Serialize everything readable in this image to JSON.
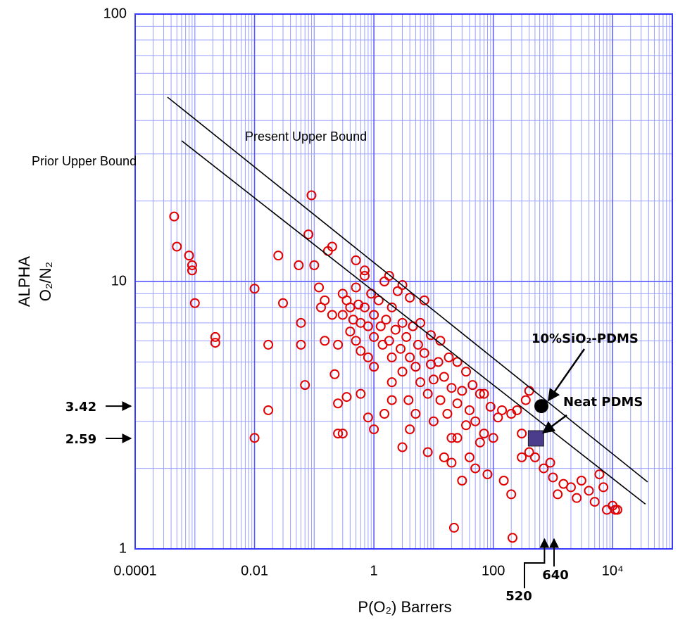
{
  "chart_data": {
    "type": "scatter",
    "x_label": "P(O₂) Barrers",
    "y_label": [
      "ALPHA",
      "O₂/N₂"
    ],
    "x_scale": "log",
    "y_scale": "log",
    "grid": true,
    "xlim": [
      0.0001,
      100000
    ],
    "ylim": [
      1,
      100
    ],
    "xticks": [
      0.0001,
      0.01,
      1,
      100,
      {
        "value": 10000,
        "label": "10⁴"
      }
    ],
    "yticks": [
      1,
      10,
      100
    ],
    "color": "#e00000",
    "x": [
      0.00045,
      0.0005,
      0.0008,
      0.0009,
      0.0009,
      0.001,
      0.0022,
      0.0022,
      0.01,
      0.01,
      0.017,
      0.017,
      0.025,
      0.03,
      0.055,
      0.06,
      0.06,
      0.07,
      0.08,
      0.09,
      0.1,
      0.12,
      0.13,
      0.15,
      0.17,
      0.2,
      0.22,
      0.25,
      0.3,
      0.3,
      0.35,
      0.4,
      0.4,
      0.45,
      0.5,
      0.5,
      0.55,
      0.6,
      0.6,
      0.7,
      0.7,
      0.8,
      0.8,
      0.9,
      1,
      1,
      1,
      1.2,
      1.3,
      1.4,
      1.5,
      1.6,
      1.8,
      2,
      2,
      2,
      2.3,
      2.5,
      2.8,
      3,
      3,
      3.5,
      3.8,
      4,
      4.5,
      5,
      5,
      5.5,
      6,
      7,
      7,
      8,
      9,
      10,
      10,
      12,
      13,
      15,
      17,
      20,
      20,
      25,
      30,
      35,
      40,
      50,
      60,
      70,
      100,
      120,
      0.6,
      1.5,
      0.25,
      0.2,
      8,
      20,
      4,
      2,
      0.8,
      1,
      3,
      15,
      30,
      50,
      80,
      150,
      200,
      22,
      210,
      300,
      350,
      400,
      500,
      700,
      900,
      1000,
      1200,
      1500,
      2000,
      2500,
      3000,
      4000,
      5000,
      6000,
      7000,
      8000,
      10000,
      11000,
      12000,
      0.25,
      0.3,
      0.35,
      25,
      40,
      400,
      250,
      140,
      60,
      0.15,
      0.5,
      0.7,
      1.8,
      3,
      4,
      6,
      9,
      13,
      18,
      25,
      35,
      45,
      70,
      90,
      200,
      300
    ],
    "values": [
      17.5,
      13.5,
      12.5,
      11.5,
      11,
      8.3,
      6.2,
      5.9,
      9.4,
      2.6,
      5.8,
      3.3,
      12.5,
      8.3,
      11.5,
      7.0,
      5.8,
      4.1,
      15,
      21,
      11.5,
      9.5,
      8,
      6,
      13,
      13.5,
      4.5,
      3.5,
      9.0,
      7.5,
      8.5,
      8,
      6.5,
      7.2,
      9.5,
      6,
      8.2,
      7,
      5.5,
      10.5,
      8,
      6.8,
      5.2,
      9,
      7.5,
      6.2,
      4.8,
      8.5,
      6.8,
      5.8,
      10,
      7.2,
      6,
      8,
      5.2,
      4.2,
      6.6,
      9.2,
      5.6,
      7,
      4.6,
      6.2,
      3.6,
      5.2,
      6.8,
      4.8,
      3.2,
      5.8,
      4.2,
      5.4,
      8.5,
      3.8,
      4.9,
      4.3,
      3,
      5,
      3.6,
      4.4,
      3.2,
      4.0,
      2.6,
      3.5,
      3.9,
      2.9,
      3.3,
      3.0,
      2.5,
      2.7,
      2.6,
      3.1,
      3.8,
      3.2,
      5.8,
      7.5,
      2.3,
      2.1,
      2.8,
      3.6,
      3.1,
      2.8,
      2.4,
      2.2,
      1.8,
      2.0,
      1.9,
      1.8,
      1.6,
      1.2,
      1.1,
      2.2,
      3.6,
      2.3,
      2.2,
      2.0,
      2.1,
      1.85,
      1.6,
      1.75,
      1.7,
      1.55,
      1.8,
      1.65,
      1.5,
      1.9,
      1.7,
      1.4,
      1.45,
      1.4,
      1.4,
      2.7,
      2.7,
      3.7,
      2.6,
      2.2,
      3.9,
      3.3,
      3.3,
      3.8,
      8.5,
      12,
      11,
      10.5,
      9.7,
      8.7,
      7,
      6.3,
      6,
      5.2,
      5,
      4.6,
      4.1,
      3.8,
      3.4,
      3.2,
      2.7
    ],
    "lines": [
      {
        "label": "Present Upper Bound",
        "color": "#000000",
        "x": [
          0.000348,
          38500
        ],
        "values": [
          48.9,
          1.78
        ]
      },
      {
        "label": "Prior Upper Bound",
        "color": "#000000",
        "x": [
          0.0006,
          35400
        ],
        "values": [
          33.6,
          1.47
        ]
      }
    ],
    "highlights": [
      {
        "label": "10%SiO₂-PDMS",
        "marker": "circle",
        "color": "#000000",
        "x": 640,
        "y": 3.42
      },
      {
        "label": "Neat PDMS",
        "marker": "square",
        "color": "#4b3c8c",
        "x": 520,
        "y": 2.59
      }
    ]
  }
}
